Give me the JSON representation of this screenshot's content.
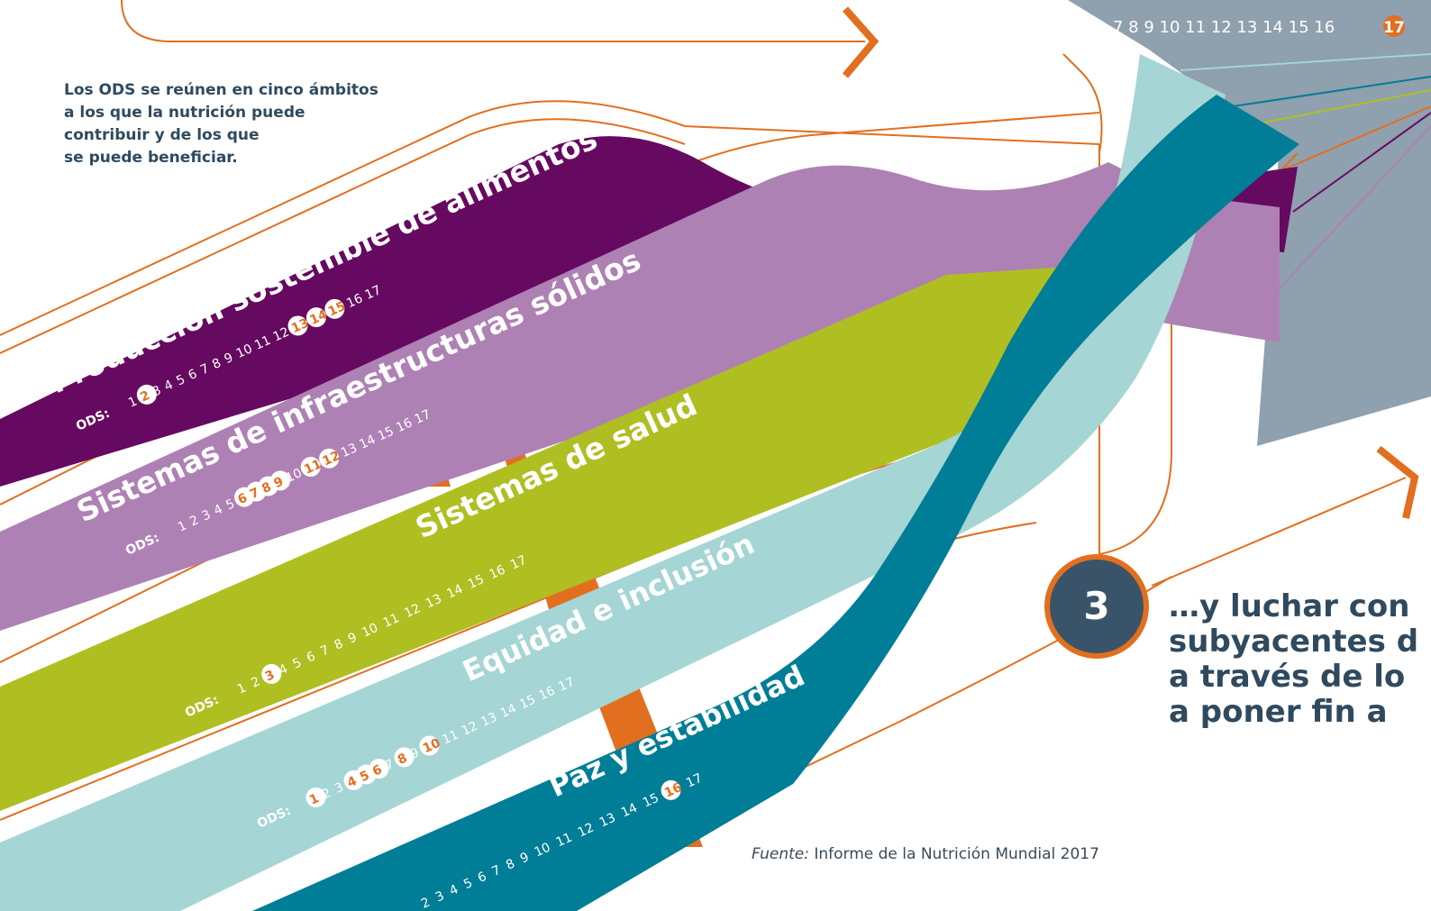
{
  "intro": "Los ODS se reúnen en cinco ámbitos\na los que la nutrición puede\ncontribuir y de los que\nse puede beneficiar.",
  "step": {
    "number": "3",
    "text": "…y luchar con\nsubyacentes d\na través de lo\na poner fin a"
  },
  "source": {
    "label": "Fuente:",
    "text": " Informe de la Nutrición Mundial 2017"
  },
  "top_numbers": {
    "plain": "7 8 9 10 11 12 13 14 15 16",
    "highlighted": "17"
  },
  "ods_prefix": "ODS:",
  "colors": {
    "orange": "#e26f1f",
    "purple": "#660960",
    "lilac": "#ae81b4",
    "lime": "#afbf22",
    "teal_light": "#a5d5d4",
    "teal_dark": "#007d97",
    "slate": "#8fa0ae",
    "navy": "#395468"
  },
  "bands": [
    {
      "title": "Producción sostenible de alimentos",
      "numbers": [
        "1",
        "2",
        "3",
        "4",
        "5",
        "6",
        "7",
        "8",
        "9",
        "10",
        "11",
        "12",
        "13",
        "14",
        "15",
        "16",
        "17"
      ],
      "highlighted": [
        "2",
        "13",
        "14",
        "15"
      ]
    },
    {
      "title": "Sistemas de infraestructuras sólidos",
      "numbers": [
        "1",
        "2",
        "3",
        "4",
        "5",
        "6",
        "7",
        "8",
        "9",
        "10",
        "11",
        "12",
        "13",
        "14",
        "15",
        "16",
        "17"
      ],
      "highlighted": [
        "6",
        "7",
        "8",
        "9",
        "11",
        "12"
      ]
    },
    {
      "title": "Sistemas de salud",
      "numbers": [
        "1",
        "2",
        "3",
        "4",
        "5",
        "6",
        "7",
        "8",
        "9",
        "10",
        "11",
        "12",
        "13",
        "14",
        "15",
        "16",
        "17"
      ],
      "highlighted": [
        "3"
      ]
    },
    {
      "title": "Equidad e inclusión",
      "numbers": [
        "1",
        "2",
        "3",
        "4",
        "5",
        "6",
        "7",
        "8",
        "9",
        "10",
        "11",
        "12",
        "13",
        "14",
        "15",
        "16",
        "17"
      ],
      "highlighted": [
        "1",
        "4",
        "5",
        "6",
        "8",
        "10"
      ]
    },
    {
      "title": "Paz y estabilidad",
      "numbers": [
        "2",
        "3",
        "4",
        "5",
        "6",
        "7",
        "8",
        "9",
        "10",
        "11",
        "12",
        "13",
        "14",
        "15",
        "16",
        "17"
      ],
      "highlighted": [
        "16"
      ]
    }
  ]
}
